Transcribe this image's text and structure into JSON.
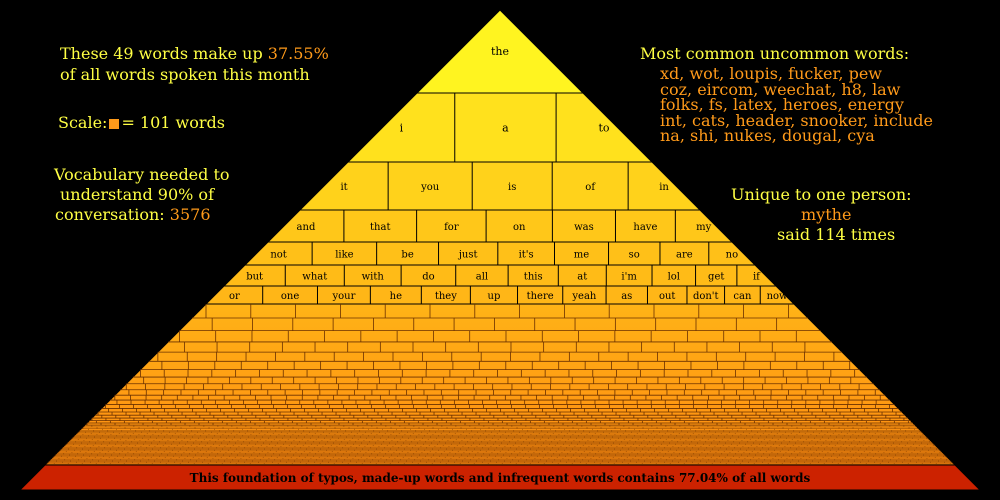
{
  "left_panel": {
    "summary_line1_prefix": "These 49 words make up",
    "summary_percent": "37.55%",
    "summary_line2": "of all words spoken this month",
    "scale_label": "Scale:",
    "scale_equals": "= 101 words",
    "vocab_line1": "Vocabulary needed to",
    "vocab_line2": "understand 90% of",
    "vocab_line3_prefix": "conversation:",
    "vocab_value": "3576"
  },
  "right_panel": {
    "uncommon_title": "Most common uncommon words:",
    "uncommon_lines": [
      "xd, wot, loupis, fucker, pew",
      "coz, eircom, weechat, h8, law",
      "folks, fs, latex, heroes, energy",
      "int, cats, header, snooker, include",
      "na, shi, nukes, dougal, cya"
    ],
    "unique_title": "Unique to one person:",
    "unique_word": "mythe",
    "unique_count": "said 114 times"
  },
  "pyramid": {
    "rows": [
      [
        "the"
      ],
      [
        "i",
        "a",
        "to"
      ],
      [
        "it",
        "you",
        "is",
        "of",
        "in"
      ],
      [
        "and",
        "that",
        "for",
        "on",
        "was",
        "have",
        "my"
      ],
      [
        "not",
        "like",
        "be",
        "just",
        "it's",
        "me",
        "so",
        "are",
        "no"
      ],
      [
        "but",
        "what",
        "with",
        "do",
        "all",
        "this",
        "at",
        "i'm",
        "lol",
        "get",
        "if"
      ],
      [
        "or",
        "one",
        "your",
        "he",
        "they",
        "up",
        "there",
        "yeah",
        "as",
        "out",
        "don't",
        "can",
        "now"
      ]
    ],
    "foundation_text": "This foundation of typos, made-up words and infrequent words contains 77.04% of all words"
  },
  "colors": {
    "background": "#000000",
    "highlight_text": "#ffff44",
    "accent_text": "#ff9a1a",
    "top": "#ffff22",
    "bottom": "#ff8a10",
    "foundation": "#cc2200"
  }
}
